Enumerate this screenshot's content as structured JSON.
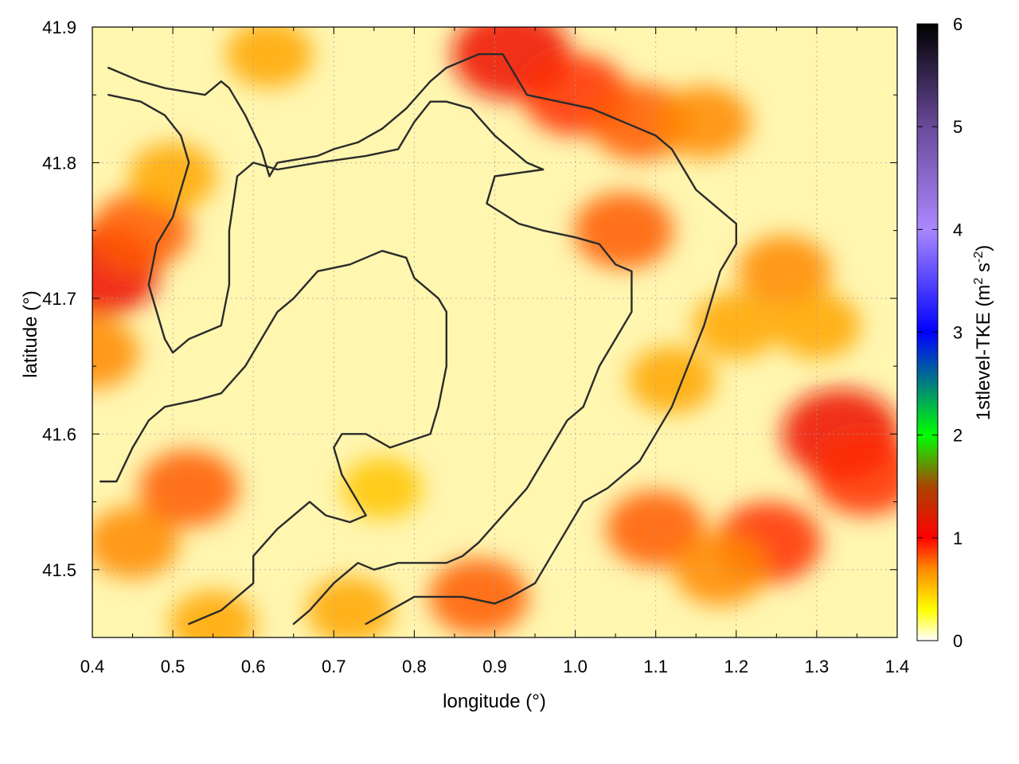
{
  "chart_data": {
    "type": "heatmap",
    "title": "",
    "xlabel": "longitude (°)",
    "ylabel": "latitude (°)",
    "colorbar_label": "1stlevel-TKE (m",
    "colorbar_label_sup1": "2",
    "colorbar_label_mid": " s",
    "colorbar_label_sup2": "-2",
    "colorbar_label_end": ")",
    "xlim": [
      0.4,
      1.4
    ],
    "ylim": [
      41.45,
      41.9
    ],
    "colorbar_range": [
      0,
      6
    ],
    "x_ticks": [
      "0.4",
      "0.5",
      "0.6",
      "0.7",
      "0.8",
      "0.9",
      "1.0",
      "1.1",
      "1.2",
      "1.3",
      "1.4"
    ],
    "y_ticks": [
      "41.5",
      "41.6",
      "41.7",
      "41.8",
      "41.9"
    ],
    "colorbar_ticks": [
      "0",
      "1",
      "2",
      "3",
      "4",
      "5",
      "6"
    ],
    "grid": true,
    "colormap": [
      {
        "v": 0.0,
        "color": "#ffffff"
      },
      {
        "v": 0.3,
        "color": "#ffff00"
      },
      {
        "v": 0.7,
        "color": "#ff8800"
      },
      {
        "v": 1.0,
        "color": "#ff0000"
      },
      {
        "v": 1.5,
        "color": "#aa4400"
      },
      {
        "v": 2.0,
        "color": "#00ff00"
      },
      {
        "v": 3.0,
        "color": "#0000ff"
      },
      {
        "v": 4.0,
        "color": "#aa88ff"
      },
      {
        "v": 5.0,
        "color": "#6a4a9a"
      },
      {
        "v": 6.0,
        "color": "#000000"
      }
    ],
    "tke_hotspots": [
      {
        "lon": 0.41,
        "lat": 41.72,
        "tke": 1.1
      },
      {
        "lon": 0.46,
        "lat": 41.75,
        "tke": 0.8
      },
      {
        "lon": 0.5,
        "lat": 41.79,
        "tke": 0.6
      },
      {
        "lon": 0.4,
        "lat": 41.66,
        "tke": 0.7
      },
      {
        "lon": 0.92,
        "lat": 41.88,
        "tke": 1.1
      },
      {
        "lon": 1.0,
        "lat": 41.85,
        "tke": 0.9
      },
      {
        "lon": 1.08,
        "lat": 41.83,
        "tke": 0.8
      },
      {
        "lon": 1.16,
        "lat": 41.83,
        "tke": 0.7
      },
      {
        "lon": 1.06,
        "lat": 41.75,
        "tke": 0.8
      },
      {
        "lon": 1.26,
        "lat": 41.72,
        "tke": 0.7
      },
      {
        "lon": 1.33,
        "lat": 41.6,
        "tke": 1.1
      },
      {
        "lon": 1.36,
        "lat": 41.57,
        "tke": 0.9
      },
      {
        "lon": 1.24,
        "lat": 41.52,
        "tke": 0.9
      },
      {
        "lon": 1.1,
        "lat": 41.53,
        "tke": 0.8
      },
      {
        "lon": 1.18,
        "lat": 41.5,
        "tke": 0.7
      },
      {
        "lon": 0.88,
        "lat": 41.48,
        "tke": 0.8
      },
      {
        "lon": 0.72,
        "lat": 41.47,
        "tke": 0.6
      },
      {
        "lon": 0.45,
        "lat": 41.52,
        "tke": 0.7
      },
      {
        "lon": 0.55,
        "lat": 41.46,
        "tke": 0.6
      },
      {
        "lon": 0.62,
        "lat": 41.88,
        "tke": 0.6
      },
      {
        "lon": 0.52,
        "lat": 41.56,
        "tke": 0.8
      },
      {
        "lon": 1.2,
        "lat": 41.68,
        "tke": 0.6
      },
      {
        "lon": 1.12,
        "lat": 41.64,
        "tke": 0.6
      },
      {
        "lon": 1.3,
        "lat": 41.68,
        "tke": 0.6
      },
      {
        "lon": 0.76,
        "lat": 41.56,
        "tke": 0.5
      }
    ],
    "contours": [
      [
        [
          0.42,
          41.87
        ],
        [
          0.46,
          41.86
        ],
        [
          0.49,
          41.855
        ],
        [
          0.54,
          41.85
        ],
        [
          0.55,
          41.855
        ],
        [
          0.56,
          41.86
        ],
        [
          0.57,
          41.855
        ],
        [
          0.59,
          41.835
        ],
        [
          0.61,
          41.81
        ],
        [
          0.62,
          41.79
        ],
        [
          0.63,
          41.8
        ],
        [
          0.68,
          41.805
        ],
        [
          0.7,
          41.81
        ],
        [
          0.73,
          41.815
        ],
        [
          0.76,
          41.825
        ],
        [
          0.79,
          41.84
        ],
        [
          0.82,
          41.86
        ],
        [
          0.84,
          41.87
        ],
        [
          0.88,
          41.88
        ],
        [
          0.91,
          41.88
        ],
        [
          0.92,
          41.87
        ],
        [
          0.94,
          41.85
        ],
        [
          1.02,
          41.84
        ],
        [
          1.06,
          41.83
        ],
        [
          1.1,
          41.82
        ],
        [
          1.12,
          41.81
        ],
        [
          1.15,
          41.78
        ],
        [
          1.17,
          41.77
        ],
        [
          1.2,
          41.755
        ],
        [
          1.2,
          41.74
        ],
        [
          1.18,
          41.72
        ],
        [
          1.16,
          41.68
        ],
        [
          1.14,
          41.65
        ],
        [
          1.12,
          41.62
        ],
        [
          1.1,
          41.6
        ],
        [
          1.08,
          41.58
        ],
        [
          1.04,
          41.56
        ],
        [
          1.01,
          41.55
        ],
        [
          0.99,
          41.53
        ],
        [
          0.97,
          41.51
        ],
        [
          0.95,
          41.49
        ],
        [
          0.92,
          41.48
        ],
        [
          0.9,
          41.475
        ],
        [
          0.86,
          41.48
        ],
        [
          0.8,
          41.48
        ],
        [
          0.77,
          41.47
        ],
        [
          0.74,
          41.46
        ]
      ],
      [
        [
          0.42,
          41.85
        ],
        [
          0.46,
          41.845
        ],
        [
          0.49,
          41.835
        ],
        [
          0.51,
          41.82
        ],
        [
          0.52,
          41.8
        ],
        [
          0.5,
          41.76
        ],
        [
          0.48,
          41.74
        ],
        [
          0.47,
          41.71
        ],
        [
          0.48,
          41.69
        ],
        [
          0.49,
          41.67
        ],
        [
          0.5,
          41.66
        ],
        [
          0.52,
          41.67
        ],
        [
          0.56,
          41.68
        ],
        [
          0.57,
          41.71
        ],
        [
          0.57,
          41.75
        ],
        [
          0.58,
          41.79
        ],
        [
          0.6,
          41.8
        ],
        [
          0.63,
          41.795
        ],
        [
          0.68,
          41.8
        ],
        [
          0.74,
          41.805
        ],
        [
          0.78,
          41.81
        ],
        [
          0.8,
          41.83
        ],
        [
          0.82,
          41.845
        ],
        [
          0.84,
          41.845
        ],
        [
          0.87,
          41.84
        ],
        [
          0.9,
          41.82
        ],
        [
          0.94,
          41.8
        ],
        [
          0.96,
          41.795
        ],
        [
          0.9,
          41.79
        ],
        [
          0.89,
          41.77
        ],
        [
          0.93,
          41.755
        ],
        [
          0.96,
          41.75
        ],
        [
          1.0,
          41.745
        ],
        [
          1.03,
          41.74
        ],
        [
          1.05,
          41.725
        ],
        [
          1.07,
          41.72
        ],
        [
          1.07,
          41.69
        ],
        [
          1.05,
          41.67
        ],
        [
          1.03,
          41.65
        ],
        [
          1.01,
          41.62
        ],
        [
          0.99,
          41.61
        ],
        [
          0.98,
          41.6
        ],
        [
          0.96,
          41.58
        ],
        [
          0.94,
          41.56
        ],
        [
          0.91,
          41.54
        ],
        [
          0.88,
          41.52
        ],
        [
          0.86,
          41.51
        ],
        [
          0.84,
          41.505
        ],
        [
          0.78,
          41.505
        ],
        [
          0.75,
          41.5
        ],
        [
          0.73,
          41.505
        ],
        [
          0.7,
          41.49
        ],
        [
          0.67,
          41.47
        ],
        [
          0.65,
          41.46
        ]
      ],
      [
        [
          0.41,
          41.565
        ],
        [
          0.43,
          41.565
        ],
        [
          0.45,
          41.59
        ],
        [
          0.47,
          41.61
        ],
        [
          0.49,
          41.62
        ],
        [
          0.53,
          41.625
        ],
        [
          0.56,
          41.63
        ],
        [
          0.59,
          41.65
        ],
        [
          0.61,
          41.67
        ],
        [
          0.63,
          41.69
        ],
        [
          0.65,
          41.7
        ],
        [
          0.68,
          41.72
        ],
        [
          0.72,
          41.725
        ],
        [
          0.76,
          41.735
        ],
        [
          0.79,
          41.73
        ],
        [
          0.8,
          41.715
        ],
        [
          0.83,
          41.7
        ],
        [
          0.84,
          41.69
        ],
        [
          0.84,
          41.65
        ],
        [
          0.83,
          41.62
        ],
        [
          0.82,
          41.6
        ],
        [
          0.77,
          41.59
        ],
        [
          0.74,
          41.6
        ],
        [
          0.71,
          41.6
        ],
        [
          0.7,
          41.59
        ],
        [
          0.71,
          41.57
        ],
        [
          0.74,
          41.54
        ],
        [
          0.72,
          41.535
        ],
        [
          0.69,
          41.54
        ],
        [
          0.67,
          41.55
        ],
        [
          0.65,
          41.54
        ],
        [
          0.63,
          41.53
        ],
        [
          0.6,
          41.51
        ],
        [
          0.6,
          41.49
        ],
        [
          0.58,
          41.48
        ],
        [
          0.56,
          41.47
        ],
        [
          0.52,
          41.46
        ]
      ]
    ]
  }
}
